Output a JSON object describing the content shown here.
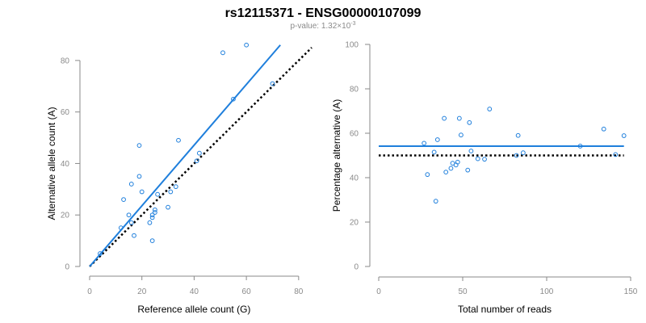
{
  "header": {
    "title": "rs12115371 - ENSG00000107099",
    "subtitle_prefix": "p-value: 1.32×10",
    "subtitle_exponent": "-3"
  },
  "colors": {
    "accent": "#1f7fdc",
    "expected_line": "#000000",
    "axis": "#8a8a8a"
  },
  "chart_data": [
    {
      "type": "scatter",
      "xlabel": "Reference allele count (G)",
      "ylabel": "Alternative allele count (A)",
      "xlim": [
        0,
        85
      ],
      "ylim": [
        0,
        90
      ],
      "xticks": [
        "0",
        "20",
        "40",
        "60",
        "80"
      ],
      "yticks": [
        "0",
        "20",
        "40",
        "60",
        "80"
      ],
      "grid": false,
      "points": [
        [
          4,
          5
        ],
        [
          12,
          15
        ],
        [
          13,
          26
        ],
        [
          15,
          20
        ],
        [
          16,
          17
        ],
        [
          16,
          32
        ],
        [
          17,
          12
        ],
        [
          19,
          35
        ],
        [
          19,
          47
        ],
        [
          20,
          29
        ],
        [
          23,
          17
        ],
        [
          24,
          10
        ],
        [
          24,
          19
        ],
        [
          24,
          20
        ],
        [
          25,
          21
        ],
        [
          25,
          22
        ],
        [
          26,
          28
        ],
        [
          30,
          23
        ],
        [
          31,
          29
        ],
        [
          33,
          31
        ],
        [
          34,
          49
        ],
        [
          41,
          41
        ],
        [
          42,
          44
        ],
        [
          51,
          83
        ],
        [
          55,
          65
        ],
        [
          60,
          86
        ],
        [
          70,
          71
        ]
      ],
      "fit_line": {
        "x": [
          0,
          73
        ],
        "y": [
          0,
          86
        ]
      },
      "expected_line": {
        "x": [
          0,
          85
        ],
        "y": [
          0,
          85
        ]
      }
    },
    {
      "type": "scatter",
      "xlabel": "Total number of reads",
      "ylabel": "Percentage alternative (A)",
      "xlim": [
        0,
        150
      ],
      "ylim": [
        0,
        100
      ],
      "xticks": [
        "0",
        "50",
        "100",
        "150"
      ],
      "yticks": [
        "0",
        "20",
        "40",
        "60",
        "80",
        "100"
      ],
      "grid": false,
      "points": [
        [
          27,
          55.5
        ],
        [
          29,
          41.4
        ],
        [
          33,
          51.5
        ],
        [
          34,
          29.4
        ],
        [
          35,
          57.1
        ],
        [
          39,
          66.7
        ],
        [
          40,
          42.5
        ],
        [
          43,
          44.2
        ],
        [
          44,
          46.5
        ],
        [
          46,
          45.7
        ],
        [
          47,
          47.0
        ],
        [
          48,
          66.7
        ],
        [
          49,
          59.2
        ],
        [
          53,
          43.4
        ],
        [
          54,
          64.8
        ],
        [
          55,
          52.0
        ],
        [
          59,
          48.5
        ],
        [
          63,
          48.3
        ],
        [
          66,
          70.9
        ],
        [
          82,
          50.0
        ],
        [
          83,
          59.0
        ],
        [
          86,
          51.2
        ],
        [
          120,
          54.2
        ],
        [
          134,
          61.9
        ],
        [
          141,
          50.4
        ],
        [
          146,
          58.9
        ]
      ],
      "fit_line": {
        "x": [
          0,
          146
        ],
        "y": [
          54.2,
          54.2
        ]
      },
      "expected_line": {
        "x": [
          0,
          146
        ],
        "y": [
          50,
          50
        ]
      }
    }
  ]
}
